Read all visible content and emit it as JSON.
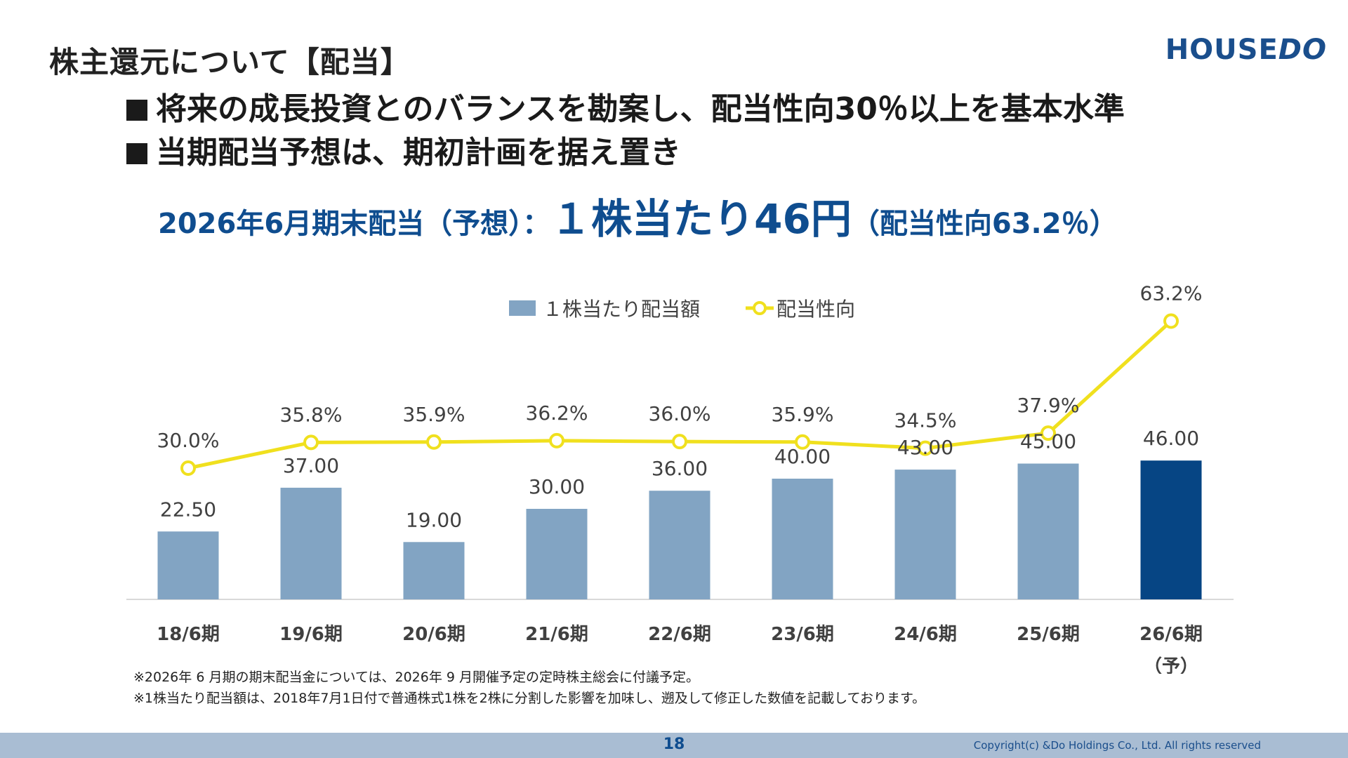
{
  "slide": {
    "title": "株主還元について【配当】",
    "logo": {
      "main": "HOUSE",
      "accent": "DO"
    },
    "bullets": [
      "将来の成長投資とのバランスを勘案し、配当性向30％以上を基本水準",
      "当期配当予想は、期初計画を据え置き"
    ],
    "headline": {
      "part1": "2026年6月期末配当（予想）：",
      "part2": "１株当たり46円",
      "part3": "（配当性向63.2％）"
    },
    "notes": [
      "※2026年 6 月期の期末配当金については、2026年 9 月開催予定の定時株主総会に付議予定。",
      "※1株当たり配当額は、2018年7月1日付で普通株式1株を2株に分割した影響を加味し、遡及して修正した数値を記載しております。"
    ],
    "page_number": "18",
    "copyright": "Copyright(c) &Do Holdings Co., Ltd. All rights reserved"
  },
  "chart_data": {
    "type": "bar",
    "categories": [
      "18/6期",
      "19/6期",
      "20/6期",
      "21/6期",
      "22/6期",
      "23/6期",
      "24/6期",
      "25/6期",
      "26/6期"
    ],
    "category_sublabels": [
      "",
      "",
      "",
      "",
      "",
      "",
      "",
      "",
      "（予）"
    ],
    "series": [
      {
        "name": "１株当たり配当額",
        "type": "bar",
        "values": [
          22.5,
          37.0,
          19.0,
          30.0,
          36.0,
          40.0,
          43.0,
          45.0,
          46.0
        ],
        "labels": [
          "22.50",
          "37.00",
          "19.00",
          "30.00",
          "36.00",
          "40.00",
          "43.00",
          "45.00",
          "46.00"
        ],
        "color": "#82a4c3",
        "highlight_color": "#064584",
        "highlight_index": 8
      },
      {
        "name": "配当性向",
        "type": "line",
        "values": [
          30.0,
          35.8,
          35.9,
          36.2,
          36.0,
          35.9,
          34.5,
          37.9,
          63.2
        ],
        "labels": [
          "30.0%",
          "35.8%",
          "35.9%",
          "36.2%",
          "36.0%",
          "35.9%",
          "34.5%",
          "37.9%",
          "63.2%"
        ],
        "color": "#f0e01e"
      }
    ],
    "legend_position": "top-center",
    "grid": false
  }
}
